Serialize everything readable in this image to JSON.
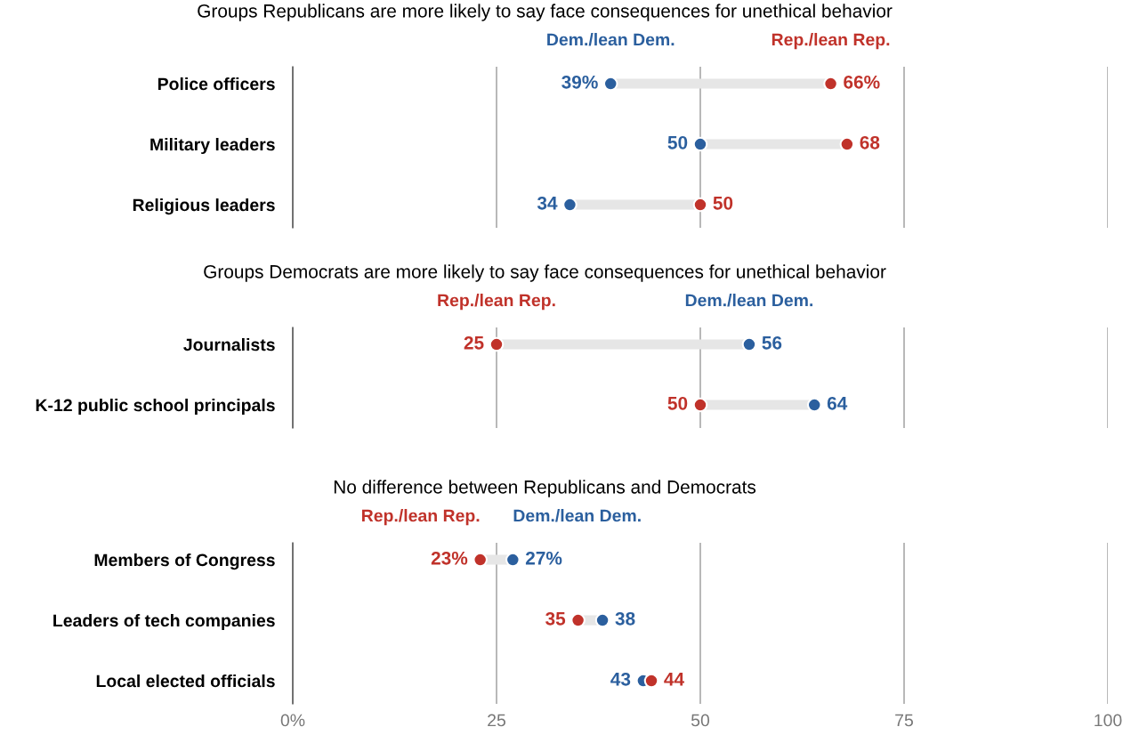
{
  "chart_data": [
    {
      "type": "scatter",
      "orientation": "horizontal",
      "title": "Groups Republicans are more likely to say face consequences for unethical behavior",
      "categories": [
        "Police officers",
        "Military leaders",
        "Religious leaders"
      ],
      "series": [
        {
          "name": "Dem./lean Dem.",
          "color": "#2b5f9e",
          "values": [
            39,
            50,
            34
          ],
          "value_labels": [
            "39%",
            "50",
            "34"
          ]
        },
        {
          "name": "Rep./lean Rep.",
          "color": "#c0322a",
          "values": [
            66,
            68,
            50
          ],
          "value_labels": [
            "66%",
            "68",
            "50"
          ]
        }
      ],
      "xlim": [
        0,
        100
      ],
      "xticks": [
        0,
        25,
        50,
        75,
        100
      ],
      "grid": "x",
      "tick_labels": "y",
      "marker": "circle",
      "legend": false
    },
    {
      "type": "scatter",
      "orientation": "horizontal",
      "title": "Groups Democrats are more likely to say face consequences for unethical behavior",
      "categories": [
        "Journalists",
        "K-12 public school principals"
      ],
      "series": [
        {
          "name": "Rep./lean Rep.",
          "color": "#c0322a",
          "values": [
            25,
            50
          ],
          "value_labels": [
            "25",
            "50"
          ]
        },
        {
          "name": "Dem./lean Dem.",
          "color": "#2b5f9e",
          "values": [
            56,
            64
          ],
          "value_labels": [
            "56",
            "64"
          ]
        }
      ],
      "xlim": [
        0,
        100
      ],
      "xticks": [
        0,
        25,
        50,
        75,
        100
      ],
      "grid": "x",
      "tick_labels": "y",
      "marker": "circle",
      "legend": false
    },
    {
      "type": "scatter",
      "orientation": "horizontal",
      "title": "No difference between Republicans and Democrats",
      "categories": [
        "Members of Congress",
        "Leaders of tech companies",
        "Local elected officials"
      ],
      "series": [
        {
          "name": "Rep./lean Rep.",
          "color": "#c0322a",
          "values": [
            23,
            35,
            44
          ],
          "value_labels": [
            "23%",
            "35",
            "44"
          ]
        },
        {
          "name": "Dem./lean Dem.",
          "color": "#2b5f9e",
          "values": [
            27,
            38,
            43
          ],
          "value_labels": [
            "27%",
            "38",
            "43"
          ]
        }
      ],
      "xlim": [
        0,
        100
      ],
      "xticks": [
        {
          "value": 0,
          "label": "0%"
        },
        25,
        50,
        75,
        100
      ],
      "grid": "x",
      "marker": "circle",
      "legend": false
    }
  ]
}
